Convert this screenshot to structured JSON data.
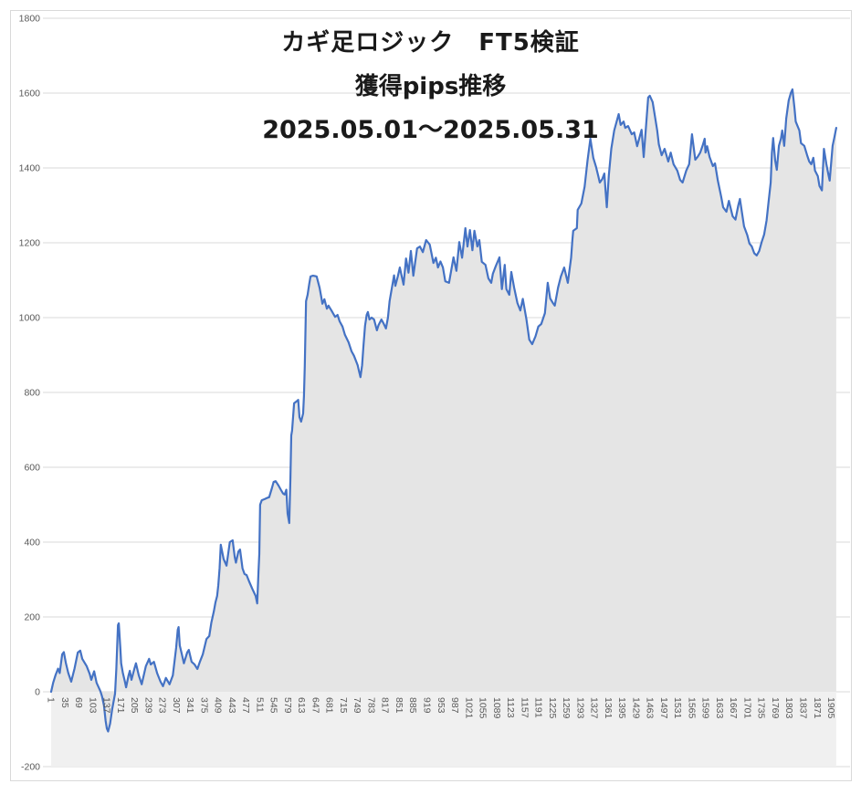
{
  "chart_data": {
    "type": "area",
    "title": "カギ足ロジック　FT5検証",
    "subtitle": "獲得pips推移",
    "period": "2025.05.01～2025.05.31",
    "xlabel": "",
    "ylabel": "",
    "legend": "none",
    "grid": true,
    "ylim": [
      -200,
      1800
    ],
    "y_ticks": [
      -200,
      0,
      200,
      400,
      600,
      800,
      1000,
      1200,
      1400,
      1600,
      1800
    ],
    "x_tick_labels": [
      "1",
      "35",
      "69",
      "103",
      "137",
      "171",
      "205",
      "239",
      "273",
      "307",
      "341",
      "375",
      "409",
      "443",
      "477",
      "511",
      "545",
      "579",
      "613",
      "647",
      "681",
      "715",
      "749",
      "783",
      "817",
      "851",
      "885",
      "919",
      "953",
      "987",
      "1021",
      "1055",
      "1089",
      "1123",
      "1157",
      "1191",
      "1225",
      "1259",
      "1293",
      "1327",
      "1361",
      "1395",
      "1429",
      "1463",
      "1497",
      "1531",
      "1565",
      "1599",
      "1633",
      "1667",
      "1701",
      "1735",
      "1769",
      "1803",
      "1837",
      "1871",
      "1905"
    ],
    "x_tick_step": 34,
    "styles": {
      "line_color": "#4472C4",
      "area_fill_color": "#e5e5e5",
      "below_zero_band_color": "#f0f0f0",
      "grid_color": "#d9d9d9",
      "border_color": "#d9d9d9",
      "axis_text_color": "#595959",
      "title_color": "#1a1a1a",
      "background": "#ffffff"
    },
    "series": [
      {
        "name": "獲得pips",
        "x": [
          1,
          6,
          12,
          18,
          22,
          28,
          32,
          37,
          43,
          50,
          58,
          66,
          72,
          77,
          88,
          95,
          99,
          106,
          112,
          121,
          125,
          130,
          134,
          137,
          140,
          145,
          150,
          157,
          160,
          164,
          166,
          170,
          172,
          176,
          181,
          184,
          190,
          193,
          197,
          204,
          208,
          215,
          222,
          232,
          240,
          244,
          252,
          260,
          268,
          274,
          281,
          290,
          298,
          306,
          310,
          312,
          315,
          320,
          325,
          333,
          337,
          344,
          351,
          358,
          364,
          371,
          380,
          387,
          392,
          398,
          402,
          406,
          409,
          412,
          415,
          422,
          429,
          437,
          444,
          449,
          452,
          458,
          462,
          468,
          473,
          478,
          484,
          492,
          500,
          504,
          507,
          509,
          511,
          515,
          522,
          528,
          533,
          540,
          544,
          549,
          556,
          562,
          567,
          571,
          575,
          578,
          582,
          585,
          587,
          589,
          594,
          600,
          604,
          607,
          611,
          616,
          618,
          620,
          623,
          627,
          631,
          634,
          640,
          645,
          649,
          656,
          660,
          663,
          668,
          674,
          678,
          685,
          694,
          700,
          705,
          712,
          718,
          727,
          734,
          740,
          749,
          753,
          756,
          760,
          763,
          767,
          771,
          774,
          778,
          783,
          789,
          796,
          800,
          807,
          812,
          818,
          823,
          827,
          830,
          838,
          841,
          847,
          852,
          861,
          867,
          873,
          879,
          885,
          894,
          901,
          908,
          916,
          925,
          934,
          940,
          945,
          951,
          957,
          963,
          972,
          983,
          990,
          997,
          1004,
          1012,
          1017,
          1023,
          1029,
          1034,
          1041,
          1046,
          1052,
          1061,
          1068,
          1075,
          1079,
          1086,
          1095,
          1101,
          1108,
          1112,
          1119,
          1124,
          1131,
          1139,
          1146,
          1152,
          1161,
          1168,
          1175,
          1183,
          1190,
          1197,
          1206,
          1213,
          1219,
          1225,
          1230,
          1238,
          1245,
          1253,
          1262,
          1270,
          1273,
          1275,
          1284,
          1286,
          1295,
          1303,
          1310,
          1317,
          1324,
          1331,
          1336,
          1340,
          1346,
          1351,
          1354,
          1357,
          1362,
          1368,
          1375,
          1386,
          1391,
          1398,
          1402,
          1409,
          1418,
          1424,
          1431,
          1442,
          1447,
          1452,
          1458,
          1462,
          1469,
          1473,
          1480,
          1484,
          1491,
          1498,
          1507,
          1513,
          1520,
          1529,
          1536,
          1542,
          1551,
          1558,
          1565,
          1573,
          1579,
          1585,
          1591,
          1596,
          1598,
          1602,
          1608,
          1616,
          1621,
          1628,
          1636,
          1641,
          1649,
          1655,
          1664,
          1671,
          1678,
          1682,
          1692,
          1700,
          1705,
          1711,
          1717,
          1723,
          1729,
          1735,
          1741,
          1747,
          1752,
          1757,
          1760,
          1763,
          1768,
          1772,
          1777,
          1782,
          1785,
          1790,
          1795,
          1801,
          1806,
          1810,
          1815,
          1818,
          1827,
          1831,
          1839,
          1846,
          1851,
          1856,
          1861,
          1865,
          1872,
          1876,
          1882,
          1887,
          1893,
          1898,
          1901,
          1908,
          1912,
          1917
        ],
        "y": [
          0,
          24,
          45,
          62,
          50,
          100,
          106,
          76,
          50,
          27,
          62,
          105,
          110,
          88,
          68,
          48,
          32,
          55,
          24,
          2,
          -12,
          -37,
          -78,
          -98,
          -106,
          -85,
          -46,
          -5,
          61,
          178,
          183,
          117,
          76,
          51,
          27,
          12,
          44,
          56,
          32,
          61,
          76,
          44,
          20,
          68,
          88,
          73,
          80,
          49,
          27,
          15,
          37,
          20,
          44,
          117,
          166,
          173,
          124,
          100,
          76,
          105,
          112,
          80,
          73,
          61,
          80,
          100,
          141,
          149,
          185,
          215,
          239,
          256,
          285,
          330,
          393,
          355,
          337,
          400,
          405,
          360,
          345,
          375,
          380,
          330,
          315,
          312,
          295,
          275,
          256,
          236,
          320,
          368,
          500,
          512,
          515,
          518,
          520,
          545,
          561,
          563,
          551,
          539,
          530,
          527,
          540,
          476,
          451,
          573,
          685,
          698,
          771,
          776,
          780,
          734,
          722,
          744,
          790,
          870,
          1044,
          1061,
          1090,
          1110,
          1112,
          1111,
          1110,
          1080,
          1056,
          1037,
          1049,
          1024,
          1032,
          1019,
          1002,
          1007,
          990,
          976,
          954,
          934,
          910,
          898,
          873,
          854,
          841,
          873,
          922,
          978,
          1007,
          1015,
          995,
          1000,
          995,
          966,
          980,
          995,
          985,
          971,
          1000,
          1044,
          1064,
          1113,
          1085,
          1110,
          1134,
          1088,
          1158,
          1120,
          1178,
          1112,
          1185,
          1190,
          1175,
          1207,
          1195,
          1146,
          1160,
          1134,
          1150,
          1134,
          1097,
          1093,
          1161,
          1125,
          1202,
          1160,
          1239,
          1190,
          1234,
          1180,
          1232,
          1190,
          1207,
          1149,
          1141,
          1105,
          1093,
          1117,
          1137,
          1161,
          1076,
          1141,
          1076,
          1061,
          1122,
          1080,
          1039,
          1019,
          1050,
          995,
          941,
          929,
          950,
          976,
          983,
          1012,
          1093,
          1051,
          1040,
          1032,
          1080,
          1110,
          1134,
          1093,
          1160,
          1207,
          1232,
          1239,
          1288,
          1305,
          1350,
          1420,
          1478,
          1427,
          1402,
          1380,
          1361,
          1370,
          1385,
          1340,
          1295,
          1380,
          1451,
          1500,
          1544,
          1515,
          1524,
          1507,
          1512,
          1490,
          1495,
          1458,
          1502,
          1429,
          1500,
          1588,
          1593,
          1576,
          1549,
          1500,
          1463,
          1434,
          1451,
          1417,
          1441,
          1410,
          1393,
          1368,
          1361,
          1393,
          1410,
          1490,
          1422,
          1430,
          1441,
          1460,
          1478,
          1441,
          1458,
          1429,
          1405,
          1412,
          1366,
          1324,
          1295,
          1283,
          1312,
          1271,
          1262,
          1300,
          1317,
          1244,
          1220,
          1198,
          1190,
          1172,
          1166,
          1178,
          1202,
          1222,
          1260,
          1310,
          1361,
          1440,
          1480,
          1420,
          1395,
          1459,
          1478,
          1500,
          1459,
          1532,
          1580,
          1600,
          1610,
          1561,
          1524,
          1500,
          1466,
          1459,
          1434,
          1417,
          1410,
          1427,
          1393,
          1378,
          1352,
          1340,
          1451,
          1410,
          1381,
          1366,
          1459,
          1480,
          1507
        ]
      }
    ]
  }
}
